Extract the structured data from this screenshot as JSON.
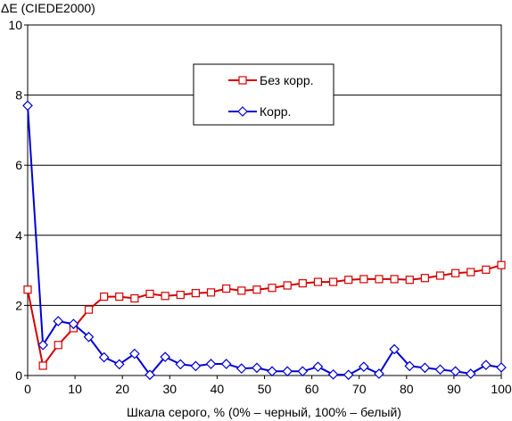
{
  "chart_data": {
    "type": "line",
    "ylabel": "ΔE (CIEDE2000)",
    "xlabel": "Шкала серого, % (0% – черный, 100% – белый)",
    "xlim": [
      0,
      100
    ],
    "ylim": [
      0,
      10
    ],
    "x_ticks": [
      0,
      10,
      20,
      30,
      40,
      50,
      60,
      70,
      80,
      90,
      100
    ],
    "y_ticks": [
      0,
      2,
      4,
      6,
      8,
      10
    ],
    "grid": "horizontal",
    "legend_position": "top-center",
    "x": [
      0,
      3.23,
      6.45,
      9.68,
      12.9,
      16.13,
      19.35,
      22.58,
      25.81,
      29.03,
      32.26,
      35.48,
      38.71,
      41.94,
      45.16,
      48.39,
      51.61,
      54.84,
      58.06,
      61.29,
      64.52,
      67.74,
      70.97,
      74.19,
      77.42,
      80.65,
      83.87,
      87.1,
      90.32,
      93.55,
      96.77,
      100
    ],
    "series": [
      {
        "name": "Без корр.",
        "color": "#d40000",
        "marker": "square",
        "values": [
          2.45,
          0.28,
          0.87,
          1.35,
          1.88,
          2.25,
          2.25,
          2.2,
          2.33,
          2.27,
          2.3,
          2.35,
          2.37,
          2.48,
          2.42,
          2.45,
          2.5,
          2.57,
          2.63,
          2.67,
          2.67,
          2.73,
          2.75,
          2.75,
          2.75,
          2.73,
          2.78,
          2.85,
          2.92,
          2.95,
          3.02,
          3.15
        ]
      },
      {
        "name": "Корр.",
        "color": "#0000d4",
        "marker": "diamond",
        "values": [
          7.7,
          0.87,
          1.55,
          1.47,
          1.1,
          0.52,
          0.32,
          0.62,
          0.02,
          0.53,
          0.32,
          0.27,
          0.33,
          0.33,
          0.2,
          0.22,
          0.12,
          0.12,
          0.12,
          0.25,
          0.03,
          0.02,
          0.25,
          0.05,
          0.75,
          0.27,
          0.22,
          0.17,
          0.12,
          0.05,
          0.3,
          0.23
        ]
      }
    ]
  }
}
